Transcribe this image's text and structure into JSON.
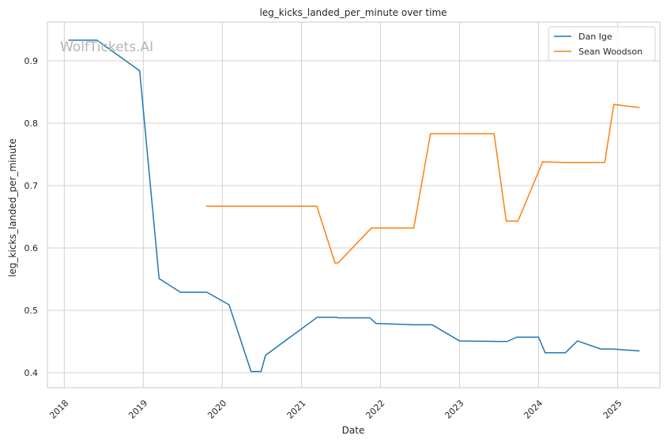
{
  "chart_data": {
    "type": "line",
    "title": "leg_kicks_landed_per_minute over time",
    "xlabel": "Date",
    "ylabel": "leg_kicks_landed_per_minute",
    "watermark": "WolfTickets.AI",
    "x_ticks": [
      "2018",
      "2019",
      "2020",
      "2021",
      "2022",
      "2023",
      "2024",
      "2025"
    ],
    "y_ticks": [
      "0.4",
      "0.5",
      "0.6",
      "0.7",
      "0.8",
      "0.9"
    ],
    "ylim": [
      0.376,
      0.962
    ],
    "xlim": [
      "2017-10-15",
      "2025-07-15"
    ],
    "grid": true,
    "legend_position": "top-right",
    "series": [
      {
        "name": "Dan Ige",
        "color": "#1f77b4",
        "points": [
          [
            "2018-01-20",
            0.933
          ],
          [
            "2018-06-01",
            0.933
          ],
          [
            "2018-12-15",
            0.884
          ],
          [
            "2019-03-15",
            0.551
          ],
          [
            "2019-06-22",
            0.529
          ],
          [
            "2019-10-22",
            0.529
          ],
          [
            "2020-02-01",
            0.509
          ],
          [
            "2020-05-13",
            0.402
          ],
          [
            "2020-06-28",
            0.402
          ],
          [
            "2020-07-19",
            0.428
          ],
          [
            "2021-03-15",
            0.489
          ],
          [
            "2021-06-12",
            0.489
          ],
          [
            "2021-06-19",
            0.488
          ],
          [
            "2021-11-13",
            0.488
          ],
          [
            "2021-12-11",
            0.479
          ],
          [
            "2022-06-04",
            0.477
          ],
          [
            "2022-08-27",
            0.477
          ],
          [
            "2023-01-01",
            0.451
          ],
          [
            "2023-07-01",
            0.45
          ],
          [
            "2023-08-08",
            0.45
          ],
          [
            "2023-09-23",
            0.457
          ],
          [
            "2024-01-01",
            0.457
          ],
          [
            "2024-02-01",
            0.432
          ],
          [
            "2024-05-04",
            0.432
          ],
          [
            "2024-06-29",
            0.451
          ],
          [
            "2024-10-15",
            0.438
          ],
          [
            "2024-12-07",
            0.438
          ],
          [
            "2025-04-12",
            0.435
          ]
        ]
      },
      {
        "name": "Sean Woodson",
        "color": "#ff7f0e",
        "points": [
          [
            "2019-10-18",
            0.667
          ],
          [
            "2021-03-13",
            0.667
          ],
          [
            "2021-06-05",
            0.576
          ],
          [
            "2021-06-19",
            0.576
          ],
          [
            "2021-11-20",
            0.632
          ],
          [
            "2022-06-04",
            0.632
          ],
          [
            "2022-08-20",
            0.783
          ],
          [
            "2023-06-10",
            0.783
          ],
          [
            "2023-08-05",
            0.643
          ],
          [
            "2023-09-28",
            0.643
          ],
          [
            "2024-01-20",
            0.738
          ],
          [
            "2024-05-04",
            0.737
          ],
          [
            "2024-11-02",
            0.737
          ],
          [
            "2024-12-14",
            0.83
          ],
          [
            "2025-04-12",
            0.825
          ]
        ]
      }
    ]
  }
}
